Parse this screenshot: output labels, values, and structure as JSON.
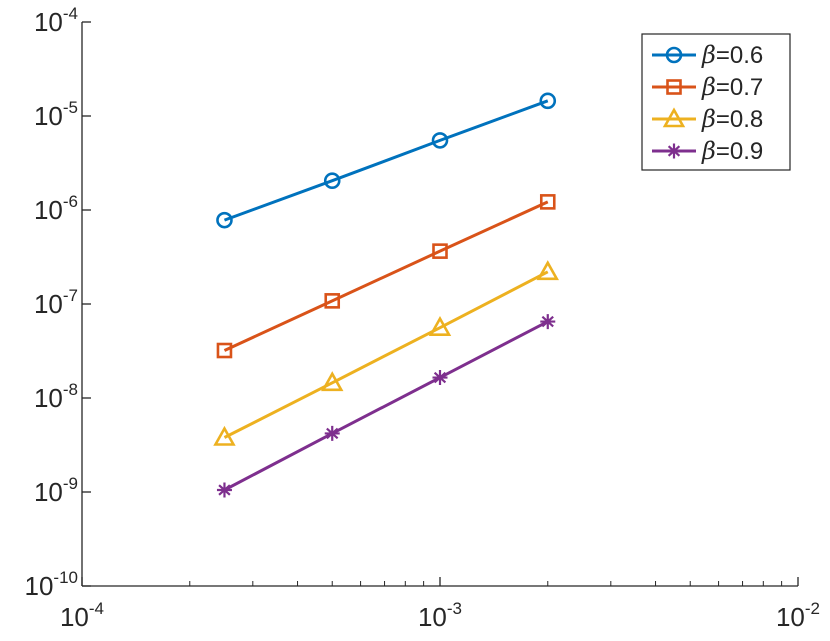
{
  "chart_data": {
    "type": "line",
    "title": "",
    "xlabel": "",
    "ylabel": "",
    "x_scale": "log",
    "y_scale": "log",
    "xlim": [
      0.0001,
      0.01
    ],
    "ylim": [
      1e-10,
      0.0001
    ],
    "grid": false,
    "legend_position": "top-right",
    "x_ticks": [
      {
        "value": 0.0001,
        "base": "10",
        "exp": "-4"
      },
      {
        "value": 0.001,
        "base": "10",
        "exp": "-3"
      },
      {
        "value": 0.01,
        "base": "10",
        "exp": "-2"
      }
    ],
    "y_ticks": [
      {
        "value": 1e-10,
        "base": "10",
        "exp": "-10"
      },
      {
        "value": 1e-09,
        "base": "10",
        "exp": "-9"
      },
      {
        "value": 1e-08,
        "base": "10",
        "exp": "-8"
      },
      {
        "value": 1e-07,
        "base": "10",
        "exp": "-7"
      },
      {
        "value": 1e-06,
        "base": "10",
        "exp": "-6"
      },
      {
        "value": 1e-05,
        "base": "10",
        "exp": "-5"
      },
      {
        "value": 0.0001,
        "base": "10",
        "exp": "-4"
      }
    ],
    "x": [
      0.00025,
      0.0005,
      0.001,
      0.002
    ],
    "series": [
      {
        "name": "β=0.6",
        "symbol": "β",
        "label": "=0.6",
        "marker": "circle",
        "color": "#0072BD",
        "values": [
          7.8e-07,
          2.05e-06,
          5.5e-06,
          1.45e-05
        ]
      },
      {
        "name": "β=0.7",
        "symbol": "β",
        "label": "=0.7",
        "marker": "square",
        "color": "#D95319",
        "values": [
          3.2e-08,
          1.08e-07,
          3.65e-07,
          1.22e-06
        ]
      },
      {
        "name": "β=0.8",
        "symbol": "β",
        "label": "=0.8",
        "marker": "triangle",
        "color": "#EDB120",
        "values": [
          3.8e-09,
          1.45e-08,
          5.6e-08,
          2.2e-07
        ]
      },
      {
        "name": "β=0.9",
        "symbol": "β",
        "label": "=0.9",
        "marker": "asterisk",
        "color": "#7E2F8E",
        "values": [
          1.05e-09,
          4.2e-09,
          1.65e-08,
          6.5e-08
        ]
      }
    ]
  }
}
